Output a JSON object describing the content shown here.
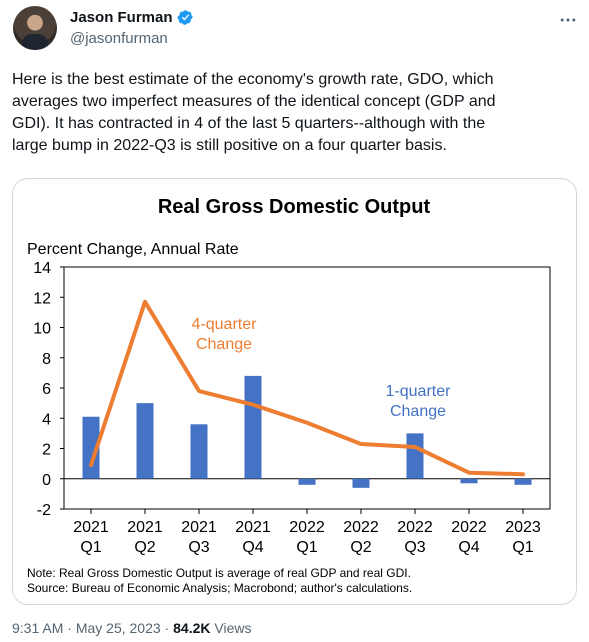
{
  "author": {
    "display_name": "Jason Furman",
    "handle": "@jasonfurman",
    "verified_icon": "verified-badge-icon",
    "more_icon": "more-options-icon"
  },
  "tweet": {
    "text": "Here is the best estimate of the economy's growth rate, GDO, which\naverages two imperfect measures of the identical concept (GDP and\nGDI). It has contracted in 4 of the last 5 quarters--although with the\nlarge bump in 2022-Q3 is still positive on a four quarter basis."
  },
  "meta": {
    "time": "9:31 AM",
    "sep1": " · ",
    "date": "May 25, 2023",
    "sep2": " · ",
    "views_count": "84.2K",
    "views_label": " Views"
  },
  "colors": {
    "bar": "#4472c4",
    "line": "#ed7d31",
    "accent": "#1d9bf0"
  },
  "chart_data": {
    "type": "bar",
    "title": "Real Gross Domestic Output",
    "ylabel": "Percent Change, Annual Rate",
    "ylim": [
      -2,
      14
    ],
    "yticks": [
      -2,
      0,
      2,
      4,
      6,
      8,
      10,
      12,
      14
    ],
    "categories": [
      {
        "year": "2021",
        "q": "Q1"
      },
      {
        "year": "2021",
        "q": "Q2"
      },
      {
        "year": "2021",
        "q": "Q3"
      },
      {
        "year": "2021",
        "q": "Q4"
      },
      {
        "year": "2022",
        "q": "Q1"
      },
      {
        "year": "2022",
        "q": "Q2"
      },
      {
        "year": "2022",
        "q": "Q3"
      },
      {
        "year": "2022",
        "q": "Q4"
      },
      {
        "year": "2023",
        "q": "Q1"
      }
    ],
    "series": [
      {
        "name": "1-quarter Change",
        "label_lines": [
          "1-quarter",
          "Change"
        ],
        "type": "bar",
        "values": [
          4.1,
          5.0,
          3.6,
          6.8,
          -0.4,
          -0.6,
          3.0,
          -0.3,
          -0.4
        ]
      },
      {
        "name": "4-quarter Change",
        "label_lines": [
          "4-quarter",
          "Change"
        ],
        "type": "line",
        "values": [
          0.9,
          11.7,
          5.8,
          4.9,
          3.7,
          2.3,
          2.1,
          0.4,
          0.3
        ]
      }
    ],
    "grid": false,
    "notes": [
      "Note: Real Gross Domestic Output is average of real GDP and real GDI.",
      "Source: Bureau of Economic Analysis; Macrobond; author's calculations."
    ]
  }
}
